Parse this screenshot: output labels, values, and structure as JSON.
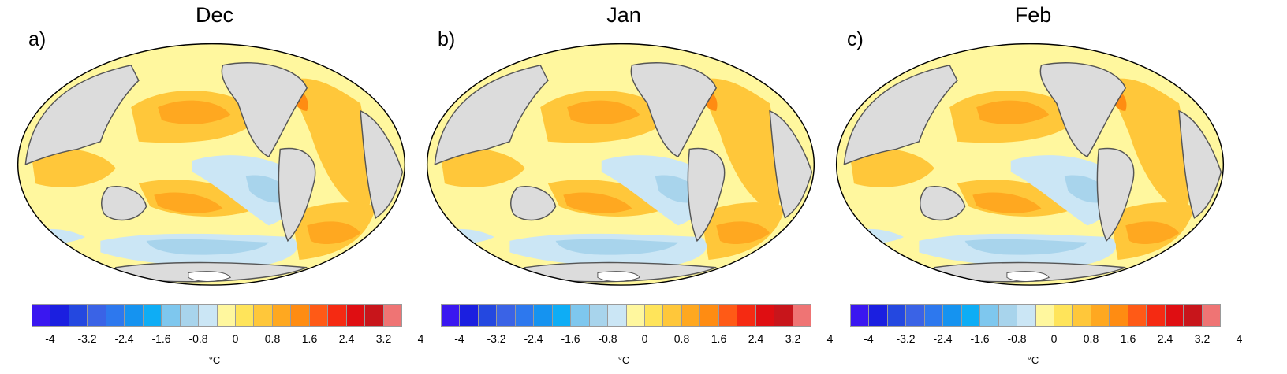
{
  "panels": [
    {
      "letter": "a)",
      "title": "Dec"
    },
    {
      "letter": "b)",
      "title": "Jan"
    },
    {
      "letter": "c)",
      "title": "Feb"
    }
  ],
  "colorbar": {
    "colors": [
      "#3a17f0",
      "#1b1fe0",
      "#2448e0",
      "#3a63e6",
      "#2d78ee",
      "#1593f0",
      "#0eadf5",
      "#7ec7ee",
      "#a8d4ec",
      "#cbe6f5",
      "#fff79e",
      "#ffe45a",
      "#ffc73a",
      "#ffa820",
      "#ff8c12",
      "#ff5a16",
      "#f52a12",
      "#df0e12",
      "#c8151b",
      "#ef7474"
    ],
    "tick_labels": [
      "-4",
      "-3.2",
      "-2.4",
      "-1.6",
      "-0.8",
      "0",
      "0.8",
      "1.6",
      "2.4",
      "3.2",
      "4"
    ],
    "unit": "°C"
  },
  "chart_data": [
    {
      "type": "heatmap",
      "title": "Dec",
      "panel": "a)",
      "colorbar_range": [
        -4,
        4
      ],
      "unit": "°C",
      "colorbar_step": 0.4,
      "projection": "Pacific-centered global map"
    },
    {
      "type": "heatmap",
      "title": "Jan",
      "panel": "b)",
      "colorbar_range": [
        -4,
        4
      ],
      "unit": "°C",
      "colorbar_step": 0.4,
      "projection": "Pacific-centered global map"
    },
    {
      "type": "heatmap",
      "title": "Feb",
      "panel": "c)",
      "colorbar_range": [
        -4,
        4
      ],
      "unit": "°C",
      "colorbar_step": 0.4,
      "projection": "Pacific-centered global map"
    }
  ]
}
